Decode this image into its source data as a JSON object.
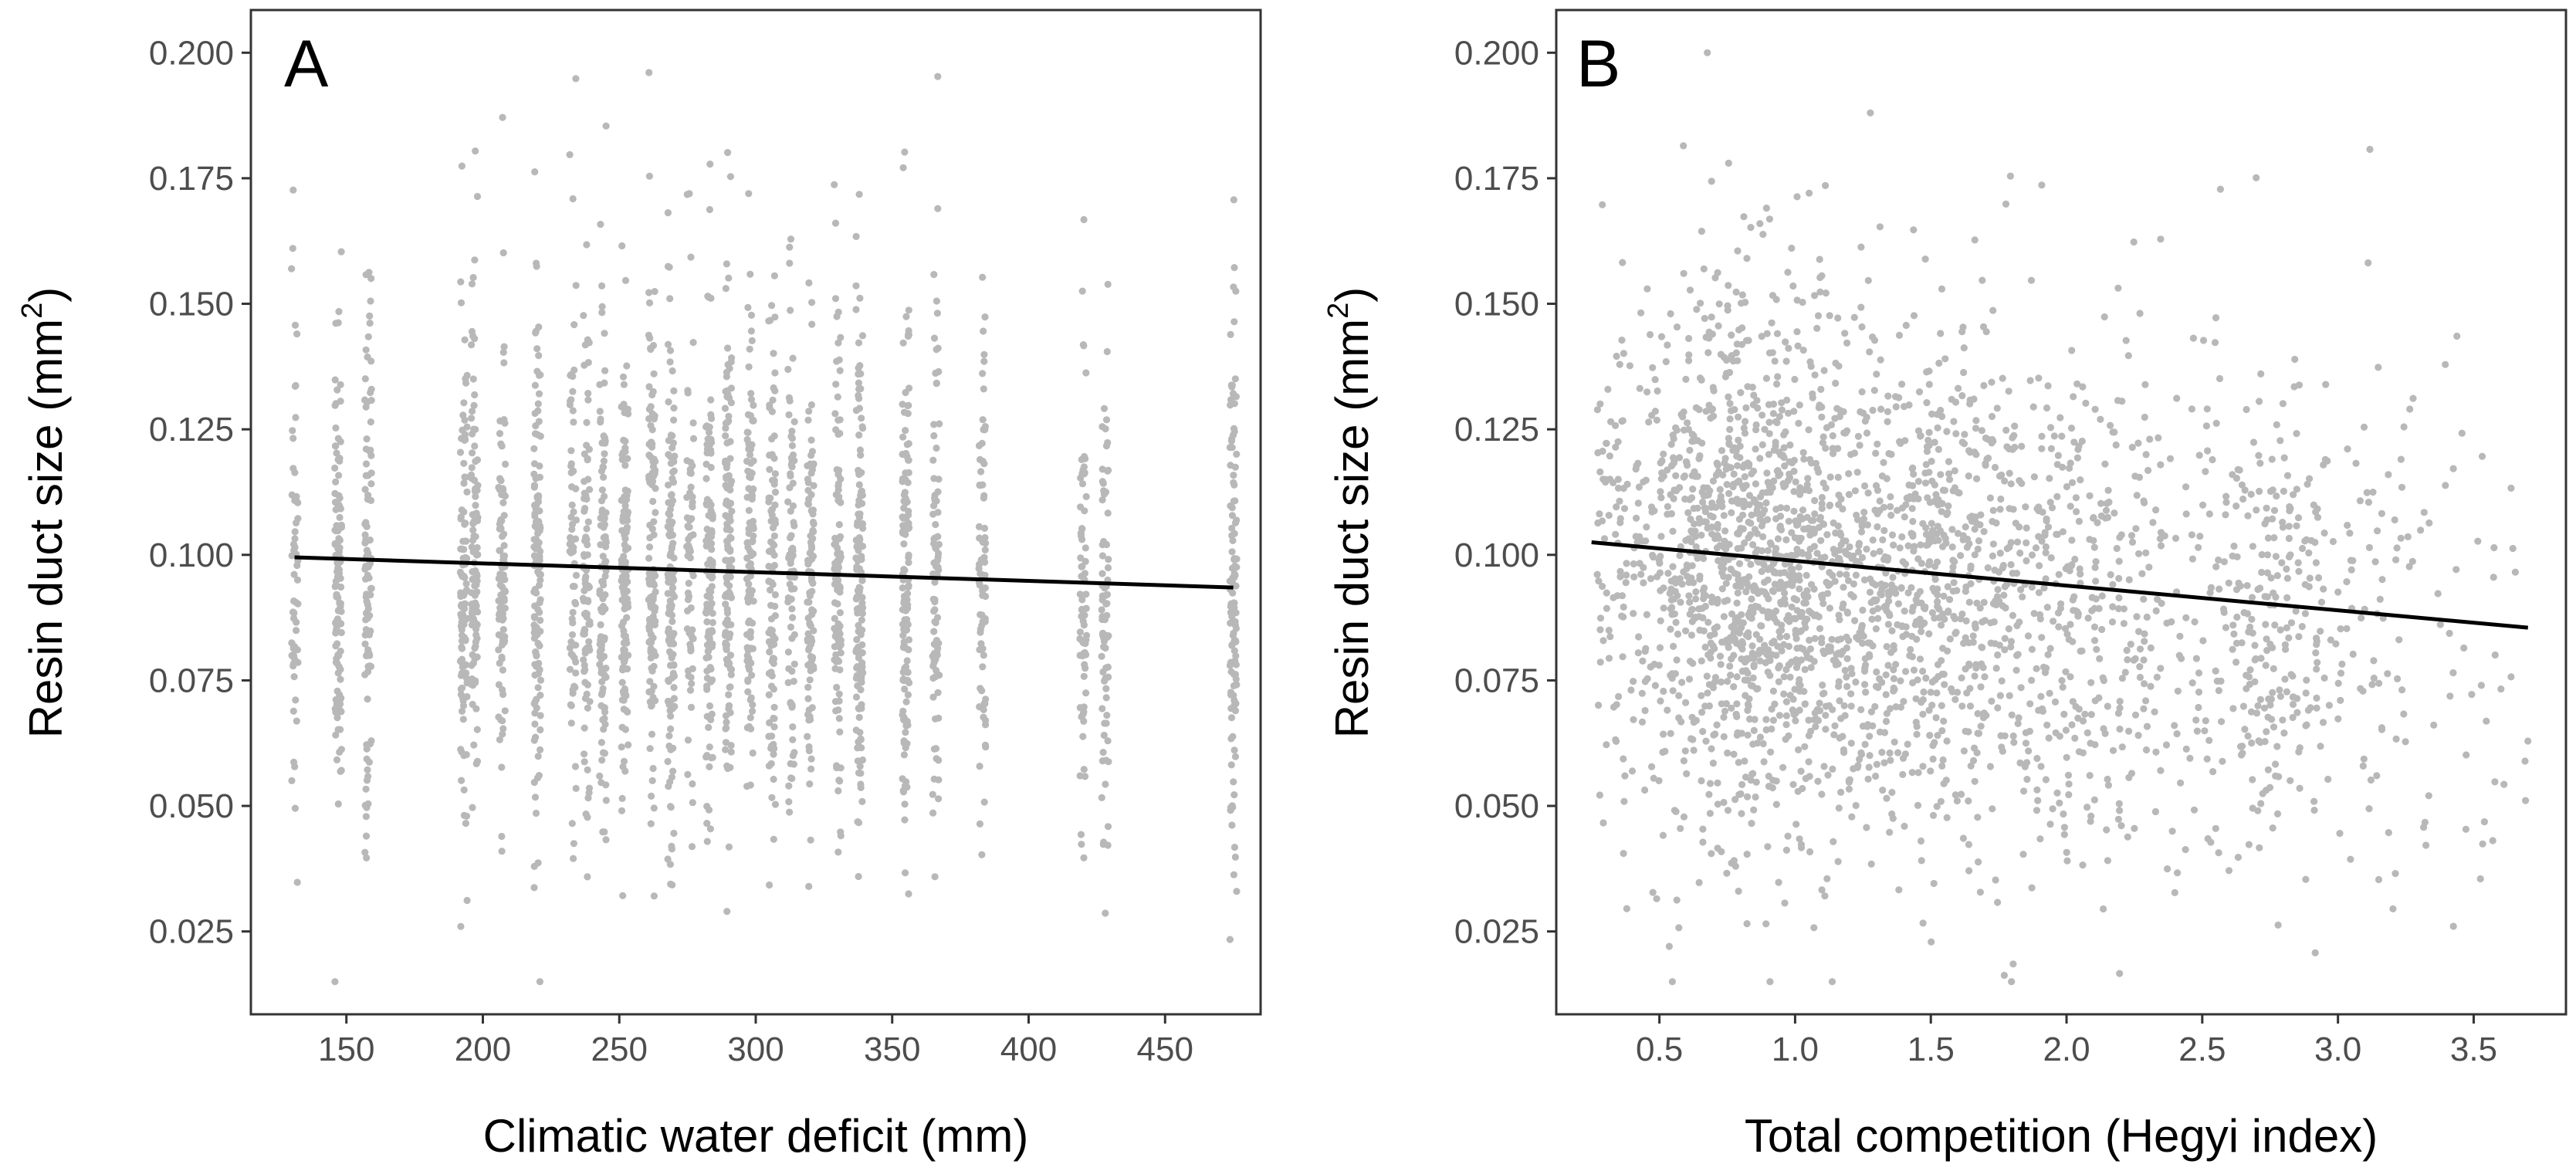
{
  "chart_data": [
    {
      "type": "scatter",
      "panel_label": "A",
      "title": "",
      "xlabel": "Climatic water deficit (mm)",
      "ylabel": "Resin duct size (mm",
      "ylabel_sup": "2",
      "ylabel_close": ")",
      "xlim": [
        115,
        485
      ],
      "ylim": [
        0.0085,
        0.2085
      ],
      "x_ticks": [
        150,
        200,
        250,
        300,
        350,
        400,
        450
      ],
      "x_tick_labels": [
        "150",
        "200",
        "250",
        "300",
        "350",
        "400",
        "450"
      ],
      "y_ticks": [
        0.025,
        0.05,
        0.075,
        0.1,
        0.125,
        0.15,
        0.175,
        0.2
      ],
      "y_tick_labels": [
        "0.025",
        "0.050",
        "0.075",
        "0.100",
        "0.125",
        "0.150",
        "0.175",
        "0.200"
      ],
      "grid": false,
      "point_color": "#b8b8b8",
      "line_color": "#000000",
      "x_columns": [
        131,
        147,
        158,
        193,
        197,
        207,
        220,
        233,
        238,
        244,
        252,
        262,
        269,
        276,
        283,
        290,
        298,
        306,
        313,
        320,
        330,
        338,
        355,
        366,
        383,
        420,
        428,
        475
      ],
      "fit_line": {
        "x": [
          131,
          475
        ],
        "y": [
          0.0995,
          0.0935
        ]
      }
    },
    {
      "type": "scatter",
      "panel_label": "B",
      "title": "",
      "xlabel": "Total competition (Hegyi index)",
      "ylabel": "Resin duct size  (mm",
      "ylabel_sup": "2",
      "ylabel_close": ")",
      "xlim": [
        0.12,
        3.84
      ],
      "ylim": [
        0.0085,
        0.2085
      ],
      "x_ticks": [
        0.5,
        1.0,
        1.5,
        2.0,
        2.5,
        3.0,
        3.5
      ],
      "x_tick_labels": [
        "0.5",
        "1.0",
        "1.5",
        "2.0",
        "2.5",
        "3.0",
        "3.5"
      ],
      "y_ticks": [
        0.025,
        0.05,
        0.075,
        0.1,
        0.125,
        0.15,
        0.175,
        0.2
      ],
      "y_tick_labels": [
        "0.025",
        "0.050",
        "0.075",
        "0.100",
        "0.125",
        "0.150",
        "0.175",
        "0.200"
      ],
      "grid": false,
      "point_color": "#b8b8b8",
      "line_color": "#000000",
      "fit_line": {
        "x": [
          0.25,
          3.7
        ],
        "y": [
          0.1025,
          0.0855
        ]
      }
    }
  ]
}
